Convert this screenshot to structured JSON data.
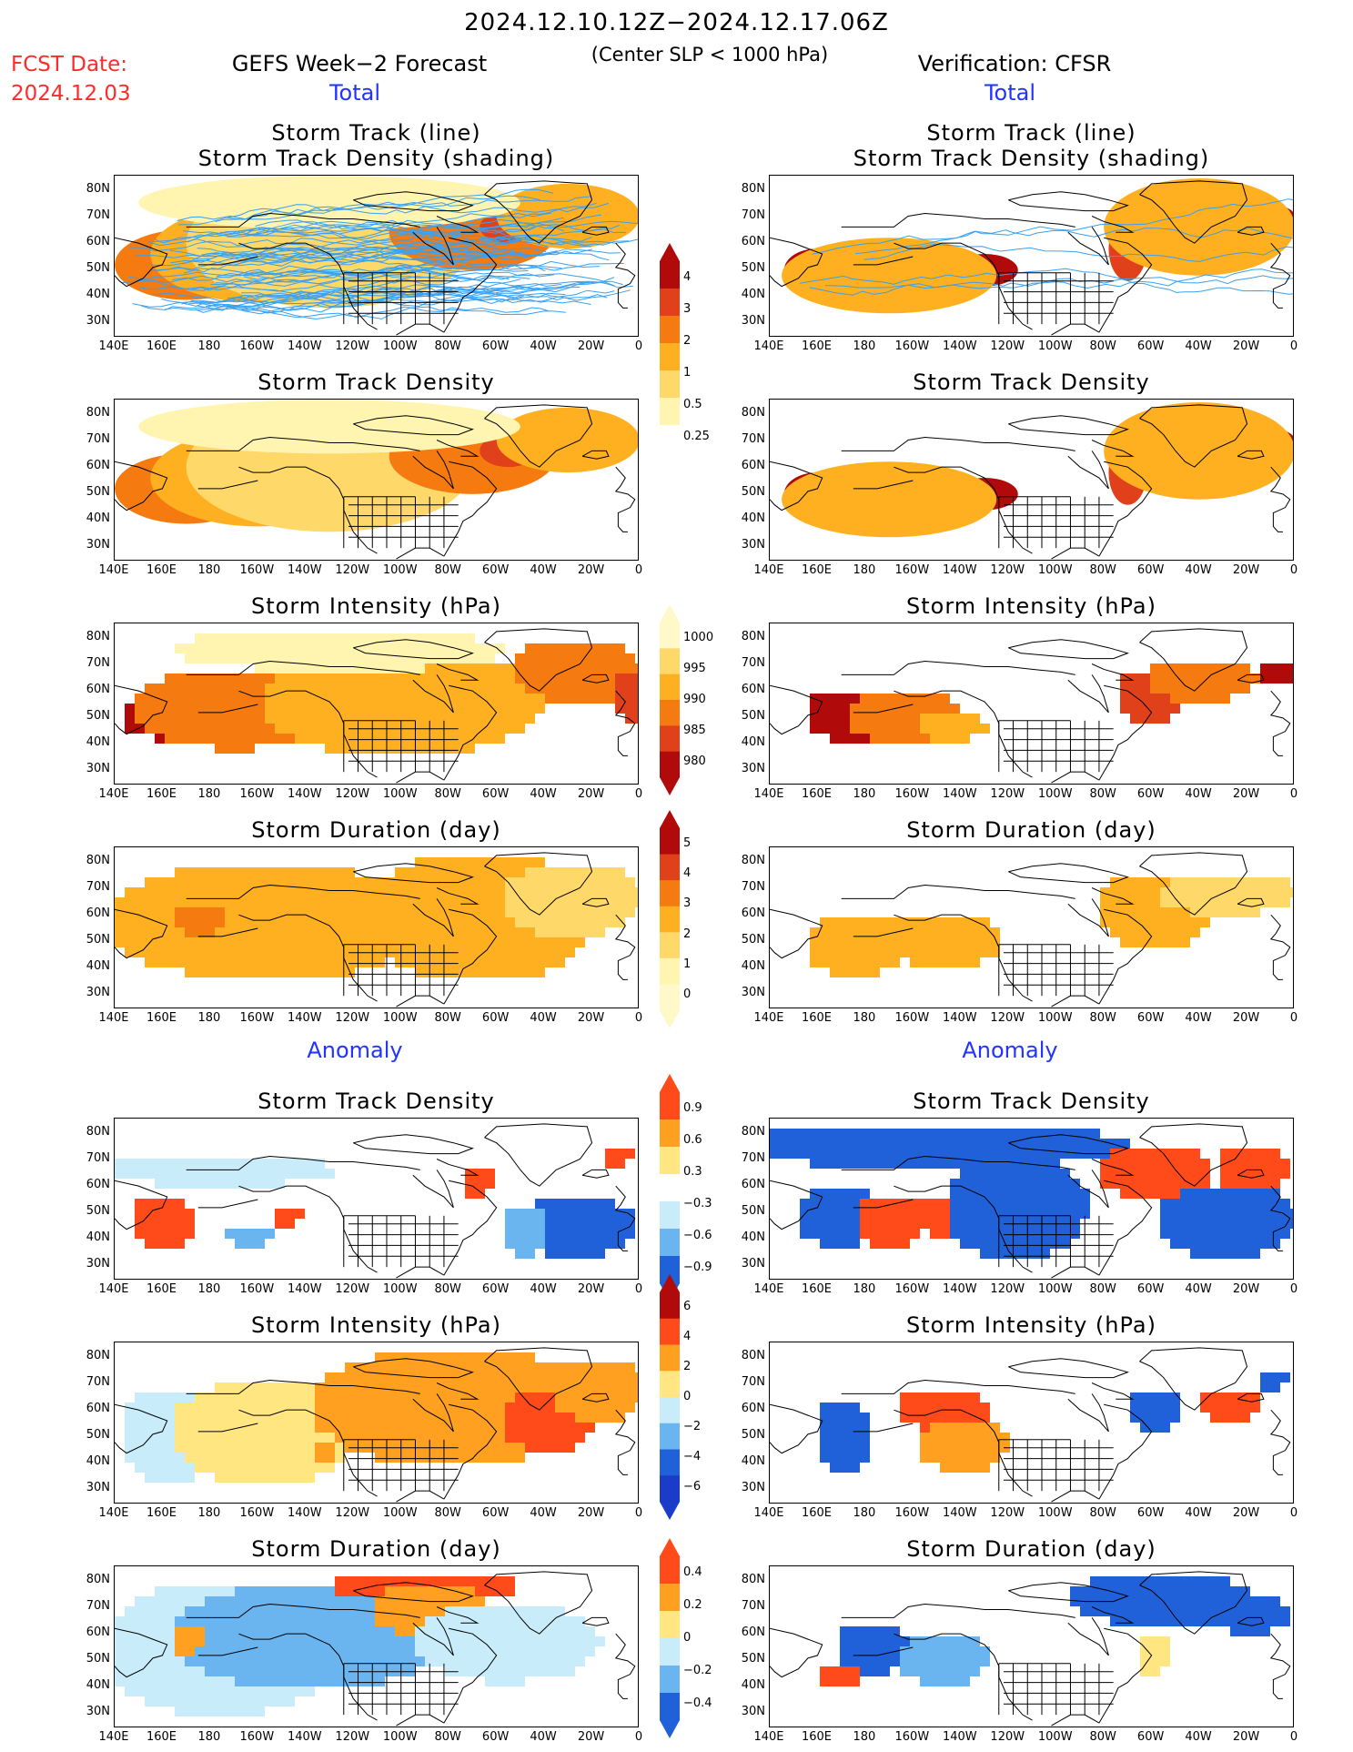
{
  "header": {
    "title": "2024.12.10.12Z−2024.12.17.06Z",
    "subtitle": "(Center SLP < 1000 hPa)",
    "fcst_label": "FCST Date:",
    "fcst_date": "2024.12.03",
    "left_title": "GEFS Week−2 Forecast",
    "right_title": "Verification: CFSR"
  },
  "sections": {
    "total": "Total",
    "anomaly": "Anomaly"
  },
  "panel_titles": {
    "track_line": "Storm Track (line)",
    "track_shading": "Storm Track Density (shading)",
    "density": "Storm Track Density",
    "intensity": "Storm Intensity (hPa)",
    "duration": "Storm Duration (day)"
  },
  "axes": {
    "lat_labels": [
      "80N",
      "70N",
      "60N",
      "50N",
      "40N",
      "30N"
    ],
    "lon_labels": [
      "140E",
      "160E",
      "180",
      "160W",
      "140W",
      "120W",
      "100W",
      "80W",
      "60W",
      "40W",
      "20W",
      "0"
    ]
  },
  "colorbars": {
    "density_total": [
      "4",
      "3",
      "2",
      "1",
      "0.5",
      "0.25"
    ],
    "intensity_total": [
      "1000",
      "995",
      "990",
      "985",
      "980"
    ],
    "duration_total": [
      "5",
      "4",
      "3",
      "2",
      "1",
      "0"
    ],
    "density_anom": [
      "0.9",
      "0.6",
      "0.3",
      "−0.3",
      "−0.6",
      "−0.9"
    ],
    "intensity_anom": [
      "6",
      "4",
      "2",
      "0",
      "−2",
      "−4",
      "−6"
    ],
    "duration_anom": [
      "0.4",
      "0.2",
      "0",
      "−0.2",
      "−0.4"
    ]
  },
  "colors": {
    "warm": [
      "#fff4b0",
      "#ffd86a",
      "#ffb020",
      "#f57a10",
      "#e0401a",
      "#b00a0a"
    ],
    "anom_warm": [
      "#ffe680",
      "#ffa020",
      "#ff4a1a"
    ],
    "anom_cool": [
      "#c8ecfa",
      "#6ab4f0",
      "#2060d8"
    ],
    "track_line": "#3aa0f0"
  }
}
